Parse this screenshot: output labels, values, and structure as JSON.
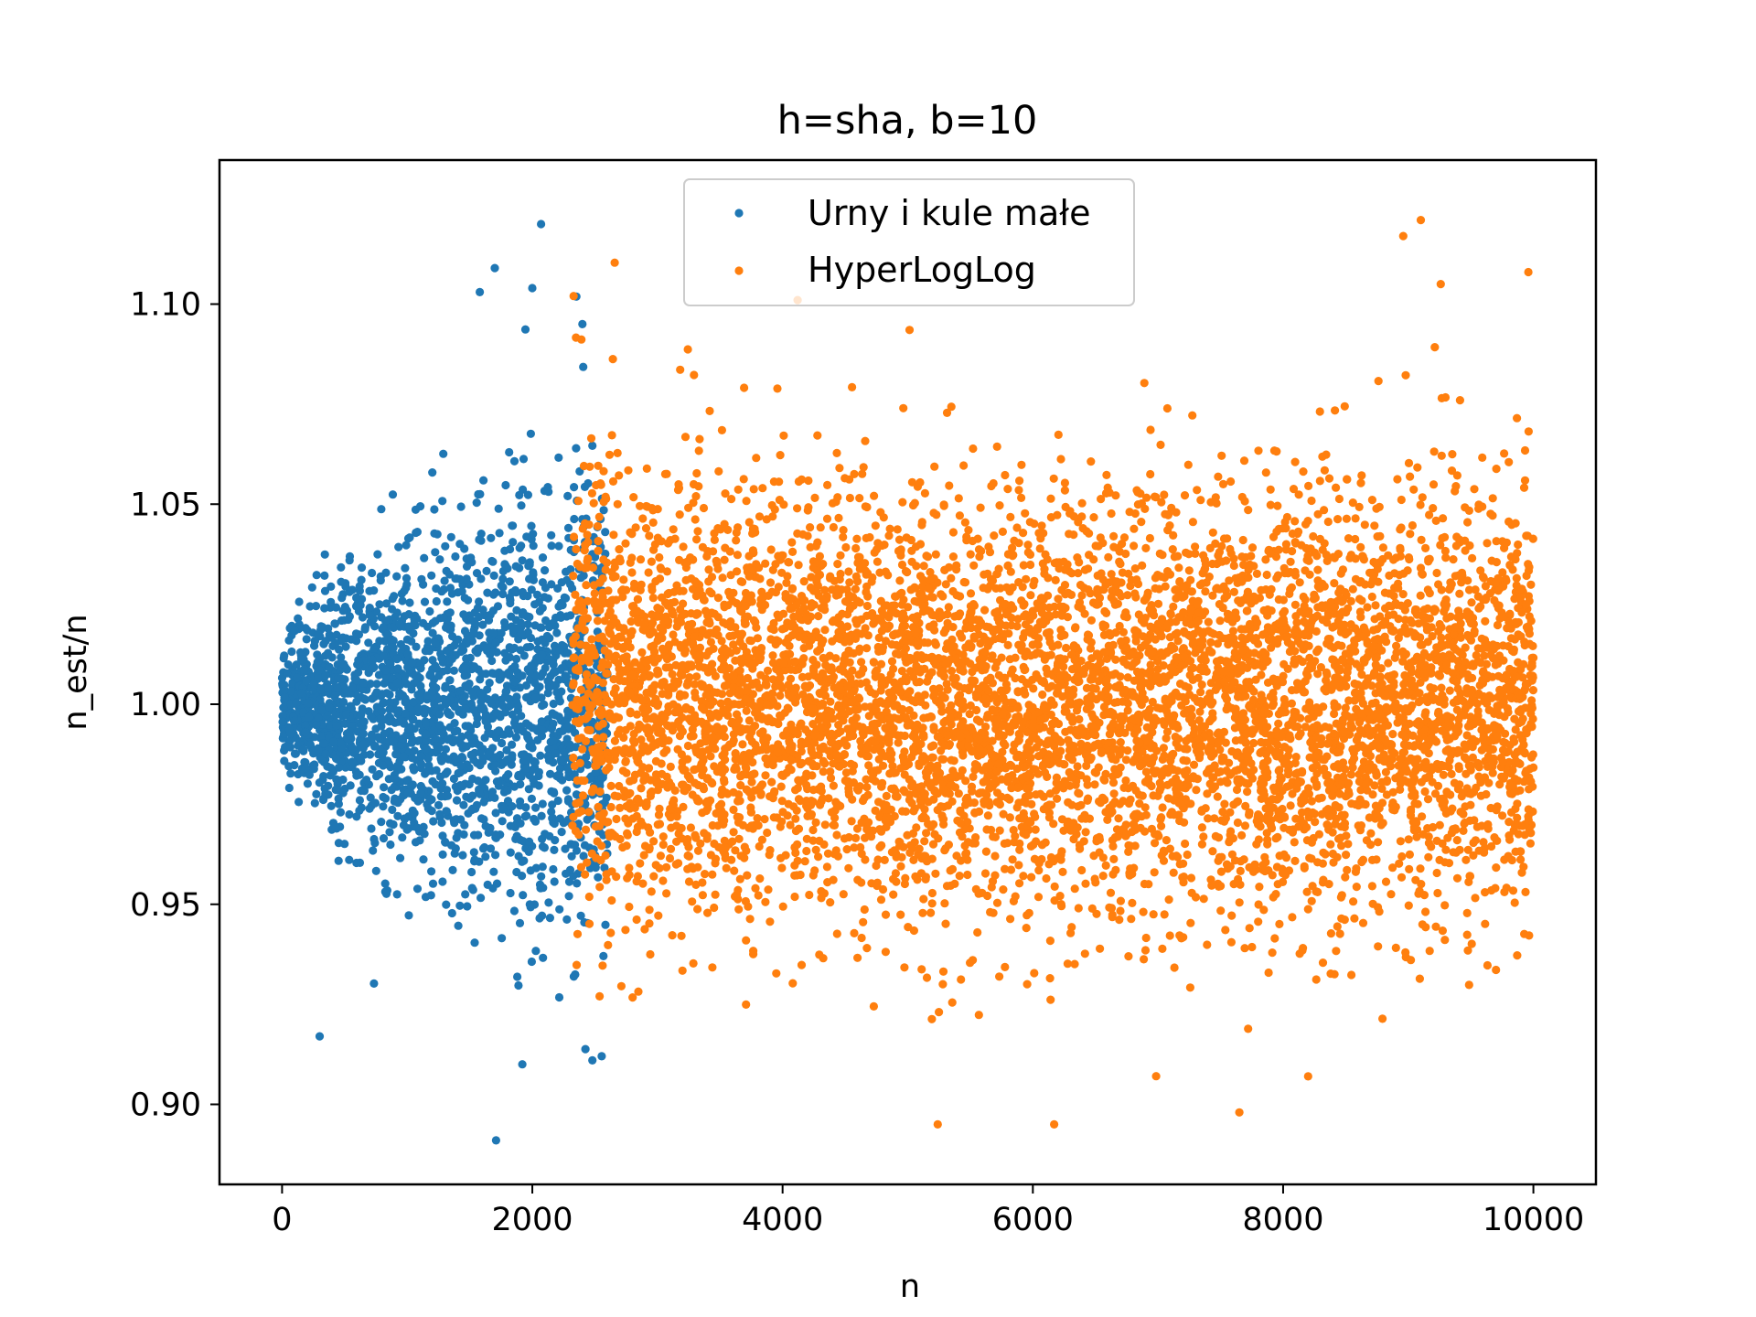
{
  "chart_data": {
    "type": "scatter",
    "title": "h=sha, b=10",
    "xlabel": "n",
    "ylabel": "n_est/n",
    "xlim": [
      -500,
      10500
    ],
    "ylim": [
      0.88,
      1.136
    ],
    "xticks": [
      0,
      2000,
      4000,
      6000,
      8000,
      10000
    ],
    "xtick_labels": [
      "0",
      "2000",
      "4000",
      "6000",
      "8000",
      "10000"
    ],
    "yticks": [
      0.9,
      0.95,
      1.0,
      1.05,
      1.1
    ],
    "ytick_labels": [
      "0.90",
      "0.95",
      "1.00",
      "1.05",
      "1.10"
    ],
    "grid": false,
    "legend_position": "top-center",
    "series": [
      {
        "name": "Urny i kule małe",
        "color": "#1f77b4",
        "x_range": [
          1,
          2600
        ],
        "center": 1.0,
        "notable_points": [
          {
            "x": 2070,
            "y": 1.12
          },
          {
            "x": 1700,
            "y": 1.109
          },
          {
            "x": 2000,
            "y": 1.104
          },
          {
            "x": 1580,
            "y": 1.103
          },
          {
            "x": 2400,
            "y": 1.095
          },
          {
            "x": 300,
            "y": 0.917
          },
          {
            "x": 1920,
            "y": 0.91
          },
          {
            "x": 2480,
            "y": 0.911
          },
          {
            "x": 1710,
            "y": 0.891
          }
        ]
      },
      {
        "name": "HyperLogLog",
        "color": "#ff7f0e",
        "x_range": [
          2320,
          10000
        ],
        "center": 1.0,
        "notable_points": [
          {
            "x": 9100,
            "y": 1.121
          },
          {
            "x": 8960,
            "y": 1.117
          },
          {
            "x": 9960,
            "y": 1.108
          },
          {
            "x": 9260,
            "y": 1.105
          },
          {
            "x": 2330,
            "y": 1.102
          },
          {
            "x": 4120,
            "y": 1.101
          },
          {
            "x": 7650,
            "y": 0.898
          },
          {
            "x": 5240,
            "y": 0.895
          },
          {
            "x": 6170,
            "y": 0.895
          },
          {
            "x": 8200,
            "y": 0.907
          }
        ]
      }
    ]
  }
}
